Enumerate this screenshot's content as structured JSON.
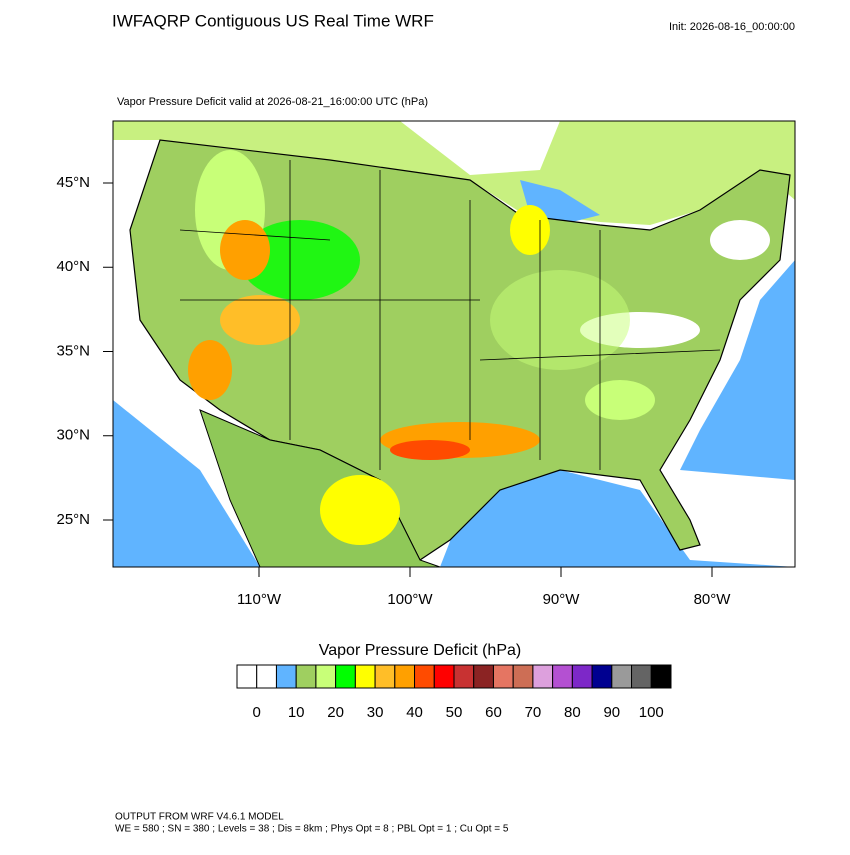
{
  "header": {
    "title": "IWFAQRP Contiguous US Real Time WRF",
    "init": "Init: 2026-08-16_00:00:00"
  },
  "map": {
    "subtitle": "Vapor Pressure Deficit valid at 2026-08-21_16:00:00 UTC   (hPa)",
    "lat_ticks": [
      {
        "value": 45,
        "label": "45°N"
      },
      {
        "value": 40,
        "label": "40°N"
      },
      {
        "value": 35,
        "label": "35°N"
      },
      {
        "value": 30,
        "label": "30°N"
      },
      {
        "value": 25,
        "label": "25°N"
      }
    ],
    "lon_ticks": [
      {
        "value": -110,
        "label": "110°W"
      },
      {
        "value": -100,
        "label": "100°W"
      },
      {
        "value": -90,
        "label": "90°W"
      },
      {
        "value": -80,
        "label": "80°W"
      }
    ]
  },
  "colorbar": {
    "title": "Vapor Pressure Deficit  (hPa)",
    "colors": [
      "#ffffff",
      "#ffffff",
      "#60b4ff",
      "#9fcf60",
      "#c8ff78",
      "#00ff00",
      "#ffff00",
      "#ffbe28",
      "#ffa000",
      "#ff4b00",
      "#ff0000",
      "#c83232",
      "#8b2323",
      "#e57562",
      "#cd6e55",
      "#dda0dd",
      "#b450d2",
      "#7d28c8",
      "#000090",
      "#9a9a9a",
      "#646464",
      "#000000"
    ],
    "ticks": [
      0,
      10,
      20,
      30,
      40,
      50,
      60,
      70,
      80,
      90,
      100
    ]
  },
  "footer": {
    "line1": "OUTPUT FROM WRF V4.6.1 MODEL",
    "line2": "WE = 580 ; SN = 380 ; Levels = 38 ; Dis = 8km ; Phys Opt = 8 ; PBL Opt = 1 ; Cu Opt = 5"
  }
}
